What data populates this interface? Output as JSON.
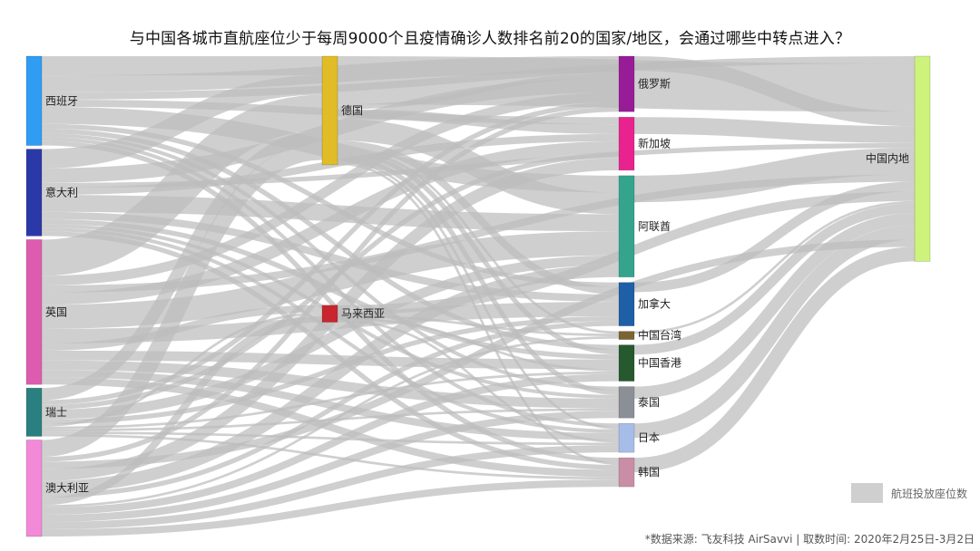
{
  "title": "与中国各城市直航座位少于每周9000个且疫情确诊人数排名前20的国家/地区，会通过哪些中转点进入？",
  "legend": {
    "label": "航班投放座位数",
    "color": "#cfcfcf"
  },
  "source": "*数据来源: 飞友科技 AirSavvi | 取数时间: 2020年2月25日-3月2日",
  "chart_data": {
    "type": "sankey",
    "link_color": "#bdbdbd",
    "nodes": [
      {
        "id": "es",
        "label": "西班牙",
        "column": 0,
        "color": "#2f9df4"
      },
      {
        "id": "it",
        "label": "意大利",
        "column": 0,
        "color": "#2b39a8"
      },
      {
        "id": "uk",
        "label": "英国",
        "column": 0,
        "color": "#de5cb0"
      },
      {
        "id": "ch",
        "label": "瑞士",
        "column": 0,
        "color": "#2a7f80"
      },
      {
        "id": "au",
        "label": "澳大利亚",
        "column": 0,
        "color": "#f28ad7"
      },
      {
        "id": "de",
        "label": "德国",
        "column": 1,
        "color": "#e0bd26"
      },
      {
        "id": "my",
        "label": "马来西亚",
        "column": 1,
        "color": "#c8262e"
      },
      {
        "id": "ru",
        "label": "俄罗斯",
        "column": 2,
        "color": "#981c98"
      },
      {
        "id": "sg",
        "label": "新加坡",
        "column": 2,
        "color": "#e8238f"
      },
      {
        "id": "ae",
        "label": "阿联酋",
        "column": 2,
        "color": "#34a58c"
      },
      {
        "id": "ca",
        "label": "加拿大",
        "column": 2,
        "color": "#1e5fa8"
      },
      {
        "id": "tw",
        "label": "中国台湾",
        "column": 2,
        "color": "#7a6432"
      },
      {
        "id": "hk",
        "label": "中国香港",
        "column": 2,
        "color": "#27592f"
      },
      {
        "id": "th",
        "label": "泰国",
        "column": 2,
        "color": "#8b8f96"
      },
      {
        "id": "jp",
        "label": "日本",
        "column": 2,
        "color": "#a6bde9"
      },
      {
        "id": "kr",
        "label": "韩国",
        "column": 2,
        "color": "#c98ea6"
      },
      {
        "id": "cn",
        "label": "中国内地",
        "column": 3,
        "color": "#cdf37c"
      }
    ],
    "links": [
      {
        "source": "es",
        "target": "de",
        "value": 16
      },
      {
        "source": "es",
        "target": "ru",
        "value": 14
      },
      {
        "source": "es",
        "target": "ae",
        "value": 14
      },
      {
        "source": "es",
        "target": "cn",
        "value": 6
      },
      {
        "source": "es",
        "target": "sg",
        "value": 6
      },
      {
        "source": "es",
        "target": "hk",
        "value": 4
      },
      {
        "source": "es",
        "target": "kr",
        "value": 4
      },
      {
        "source": "es",
        "target": "ca",
        "value": 4
      },
      {
        "source": "es",
        "target": "jp",
        "value": 3
      },
      {
        "source": "es",
        "target": "th",
        "value": 3
      },
      {
        "source": "it",
        "target": "de",
        "value": 16
      },
      {
        "source": "it",
        "target": "ru",
        "value": 12
      },
      {
        "source": "it",
        "target": "ae",
        "value": 14
      },
      {
        "source": "it",
        "target": "sg",
        "value": 6
      },
      {
        "source": "it",
        "target": "ca",
        "value": 6
      },
      {
        "source": "it",
        "target": "cn",
        "value": 4
      },
      {
        "source": "it",
        "target": "hk",
        "value": 4
      },
      {
        "source": "it",
        "target": "kr",
        "value": 4
      },
      {
        "source": "it",
        "target": "jp",
        "value": 3
      },
      {
        "source": "it",
        "target": "th",
        "value": 3
      },
      {
        "source": "uk",
        "target": "de",
        "value": 30
      },
      {
        "source": "uk",
        "target": "ae",
        "value": 20
      },
      {
        "source": "uk",
        "target": "ru",
        "value": 8
      },
      {
        "source": "uk",
        "target": "ca",
        "value": 12
      },
      {
        "source": "uk",
        "target": "sg",
        "value": 10
      },
      {
        "source": "uk",
        "target": "hk",
        "value": 8
      },
      {
        "source": "uk",
        "target": "th",
        "value": 8
      },
      {
        "source": "uk",
        "target": "my",
        "value": 6
      },
      {
        "source": "uk",
        "target": "jp",
        "value": 6
      },
      {
        "source": "uk",
        "target": "kr",
        "value": 6
      },
      {
        "source": "uk",
        "target": "cn",
        "value": 6
      },
      {
        "source": "ch",
        "target": "de",
        "value": 10
      },
      {
        "source": "ch",
        "target": "ae",
        "value": 8
      },
      {
        "source": "ch",
        "target": "ru",
        "value": 4
      },
      {
        "source": "ch",
        "target": "sg",
        "value": 4
      },
      {
        "source": "ch",
        "target": "ca",
        "value": 4
      },
      {
        "source": "ch",
        "target": "hk",
        "value": 2
      },
      {
        "source": "ch",
        "target": "th",
        "value": 2
      },
      {
        "source": "ch",
        "target": "my",
        "value": 2
      },
      {
        "source": "ch",
        "target": "kr",
        "value": 2
      },
      {
        "source": "ch",
        "target": "jp",
        "value": 2
      },
      {
        "source": "au",
        "target": "de",
        "value": 14
      },
      {
        "source": "au",
        "target": "sg",
        "value": 10
      },
      {
        "source": "au",
        "target": "ae",
        "value": 10
      },
      {
        "source": "au",
        "target": "ru",
        "value": 4
      },
      {
        "source": "au",
        "target": "my",
        "value": 6
      },
      {
        "source": "au",
        "target": "jp",
        "value": 6
      },
      {
        "source": "au",
        "target": "kr",
        "value": 6
      },
      {
        "source": "au",
        "target": "ca",
        "value": 4
      },
      {
        "source": "au",
        "target": "th",
        "value": 6
      },
      {
        "source": "au",
        "target": "hk",
        "value": 6
      },
      {
        "source": "au",
        "target": "tw",
        "value": 2
      },
      {
        "source": "au",
        "target": "cn",
        "value": 6
      },
      {
        "source": "de",
        "target": "cn",
        "value": 40
      },
      {
        "source": "de",
        "target": "ru",
        "value": 4
      },
      {
        "source": "de",
        "target": "sg",
        "value": 8
      },
      {
        "source": "de",
        "target": "ae",
        "value": 18
      },
      {
        "source": "de",
        "target": "ca",
        "value": 6
      },
      {
        "source": "de",
        "target": "tw",
        "value": 2
      },
      {
        "source": "de",
        "target": "hk",
        "value": 4
      },
      {
        "source": "de",
        "target": "th",
        "value": 4
      },
      {
        "source": "de",
        "target": "jp",
        "value": 2
      },
      {
        "source": "de",
        "target": "kr",
        "value": 2
      },
      {
        "source": "my",
        "target": "cn",
        "value": 8
      },
      {
        "source": "my",
        "target": "jp",
        "value": 2
      },
      {
        "source": "my",
        "target": "hk",
        "value": 2
      },
      {
        "source": "my",
        "target": "tw",
        "value": 2
      },
      {
        "source": "ru",
        "target": "cn",
        "value": 12
      },
      {
        "source": "sg",
        "target": "cn",
        "value": 14
      },
      {
        "source": "ae",
        "target": "cn",
        "value": 22
      },
      {
        "source": "ca",
        "target": "cn",
        "value": 8
      },
      {
        "source": "tw",
        "target": "cn",
        "value": 2
      },
      {
        "source": "hk",
        "target": "cn",
        "value": 8
      },
      {
        "source": "th",
        "target": "cn",
        "value": 10
      },
      {
        "source": "jp",
        "target": "cn",
        "value": 12
      },
      {
        "source": "kr",
        "target": "cn",
        "value": 12
      }
    ]
  }
}
